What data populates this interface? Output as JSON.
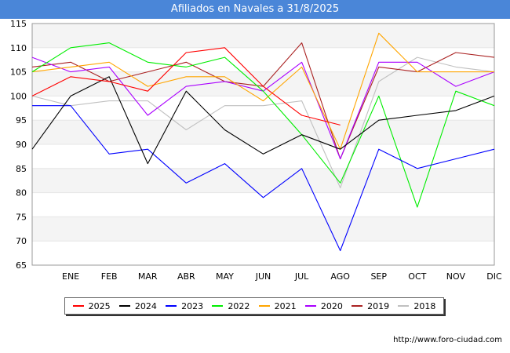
{
  "title": "Afiliados en Navales a 31/8/2025",
  "source": "http://www.foro-ciudad.com",
  "watermark": "FORO-CIUDAD.COM",
  "chart_data": {
    "type": "line",
    "title": "Afiliados en Navales a 31/8/2025",
    "xlabel": "",
    "ylabel": "",
    "categories": [
      "",
      "ENE",
      "FEB",
      "MAR",
      "ABR",
      "MAY",
      "JUN",
      "JUL",
      "AGO",
      "SEP",
      "OCT",
      "NOV",
      "DIC"
    ],
    "ylim": [
      65,
      115
    ],
    "yticks": [
      65,
      70,
      75,
      80,
      85,
      90,
      95,
      100,
      105,
      110,
      115
    ],
    "grid": "horizontal bands",
    "legend_position": "bottom",
    "series": [
      {
        "name": "2025",
        "color": "#ff0000",
        "values": [
          100,
          104,
          103,
          101,
          109,
          110,
          102,
          96,
          94,
          null,
          null,
          null,
          null
        ]
      },
      {
        "name": "2024",
        "color": "#000000",
        "values": [
          89,
          100,
          104,
          86,
          101,
          93,
          88,
          92,
          89,
          95,
          96,
          97,
          100
        ]
      },
      {
        "name": "2023",
        "color": "#0000ff",
        "values": [
          98,
          98,
          88,
          89,
          82,
          86,
          79,
          85,
          68,
          89,
          85,
          87,
          89
        ]
      },
      {
        "name": "2022",
        "color": "#00ee00",
        "values": [
          105,
          110,
          111,
          107,
          106,
          108,
          101,
          92,
          82,
          100,
          77,
          101,
          98
        ]
      },
      {
        "name": "2021",
        "color": "#ffa500",
        "values": [
          105,
          106,
          107,
          102,
          104,
          104,
          99,
          106,
          89,
          113,
          105,
          105,
          105
        ]
      },
      {
        "name": "2020",
        "color": "#aa00ff",
        "values": [
          108,
          105,
          106,
          96,
          102,
          103,
          101,
          107,
          87,
          107,
          107,
          102,
          105
        ]
      },
      {
        "name": "2019",
        "color": "#aa2222",
        "values": [
          106,
          107,
          103,
          105,
          107,
          103,
          102,
          111,
          87,
          106,
          105,
          109,
          108
        ]
      },
      {
        "name": "2018",
        "color": "#c0c0c0",
        "values": [
          100,
          98,
          99,
          99,
          93,
          98,
          98,
          99,
          81,
          103,
          108,
          106,
          105
        ]
      }
    ]
  }
}
